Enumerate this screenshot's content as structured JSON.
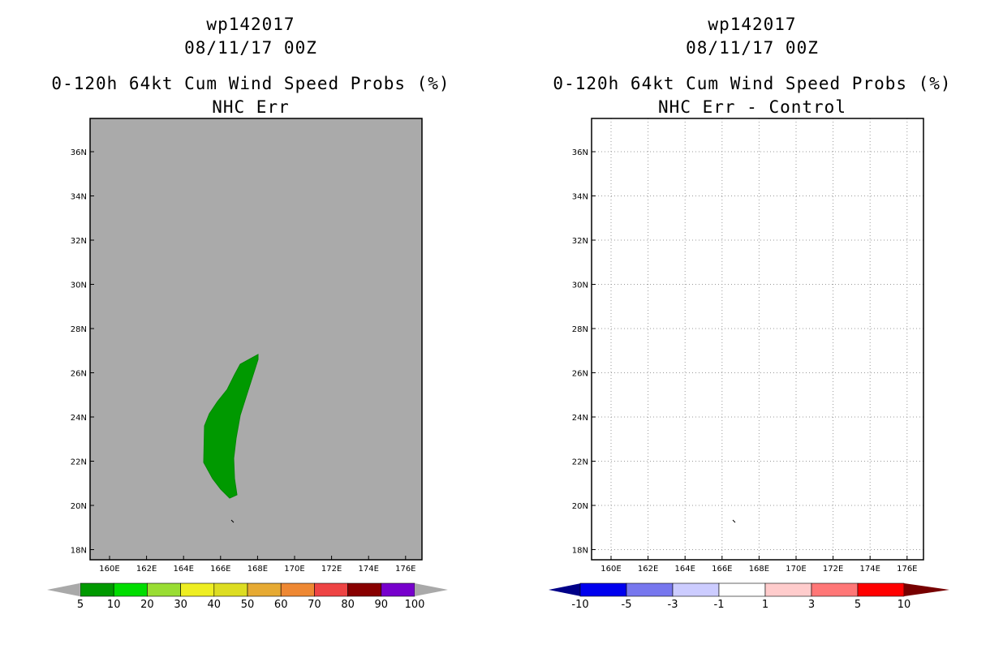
{
  "panels": [
    {
      "storm_id": "wp142017",
      "datetime": "08/11/17 00Z",
      "product": "0-120h 64kt Cum Wind Speed Probs (%)",
      "subtitle": "NHC Err",
      "lat_labels": [
        "36N",
        "34N",
        "32N",
        "30N",
        "28N",
        "26N",
        "24N",
        "22N",
        "20N",
        "18N"
      ],
      "lon_labels": [
        "160E",
        "162E",
        "164E",
        "166E",
        "168E",
        "170E",
        "172E",
        "174E",
        "176E"
      ],
      "colorbar": {
        "labels": [
          "5",
          "10",
          "20",
          "30",
          "40",
          "50",
          "60",
          "70",
          "80",
          "90",
          "100"
        ],
        "colors": [
          "#009900",
          "#00dd00",
          "#99dd33",
          "#eeee22",
          "#dddd22",
          "#e6aa33",
          "#ee8833",
          "#ee4444",
          "#880000",
          "#7700cc"
        ],
        "under_color": "#a9a9a9",
        "over_color": "#a9a9a9"
      },
      "map_background": "#aaaaaa",
      "contour_fill": "#009900"
    },
    {
      "storm_id": "wp142017",
      "datetime": "08/11/17 00Z",
      "product": "0-120h 64kt Cum Wind Speed Probs (%)",
      "subtitle": "NHC Err - Control",
      "lat_labels": [
        "36N",
        "34N",
        "32N",
        "30N",
        "28N",
        "26N",
        "24N",
        "22N",
        "20N",
        "18N"
      ],
      "lon_labels": [
        "160E",
        "162E",
        "164E",
        "166E",
        "168E",
        "170E",
        "172E",
        "174E",
        "176E"
      ],
      "colorbar": {
        "labels": [
          "-10",
          "-5",
          "-3",
          "-1",
          "1",
          "3",
          "5",
          "10"
        ],
        "colors": [
          "#0000ee",
          "#7777ee",
          "#ccccff",
          "#ffffff",
          "#ffcccc",
          "#ff7777",
          "#ff0000"
        ],
        "under_color": "#000088",
        "over_color": "#770000"
      },
      "map_background": "#ffffff"
    }
  ]
}
